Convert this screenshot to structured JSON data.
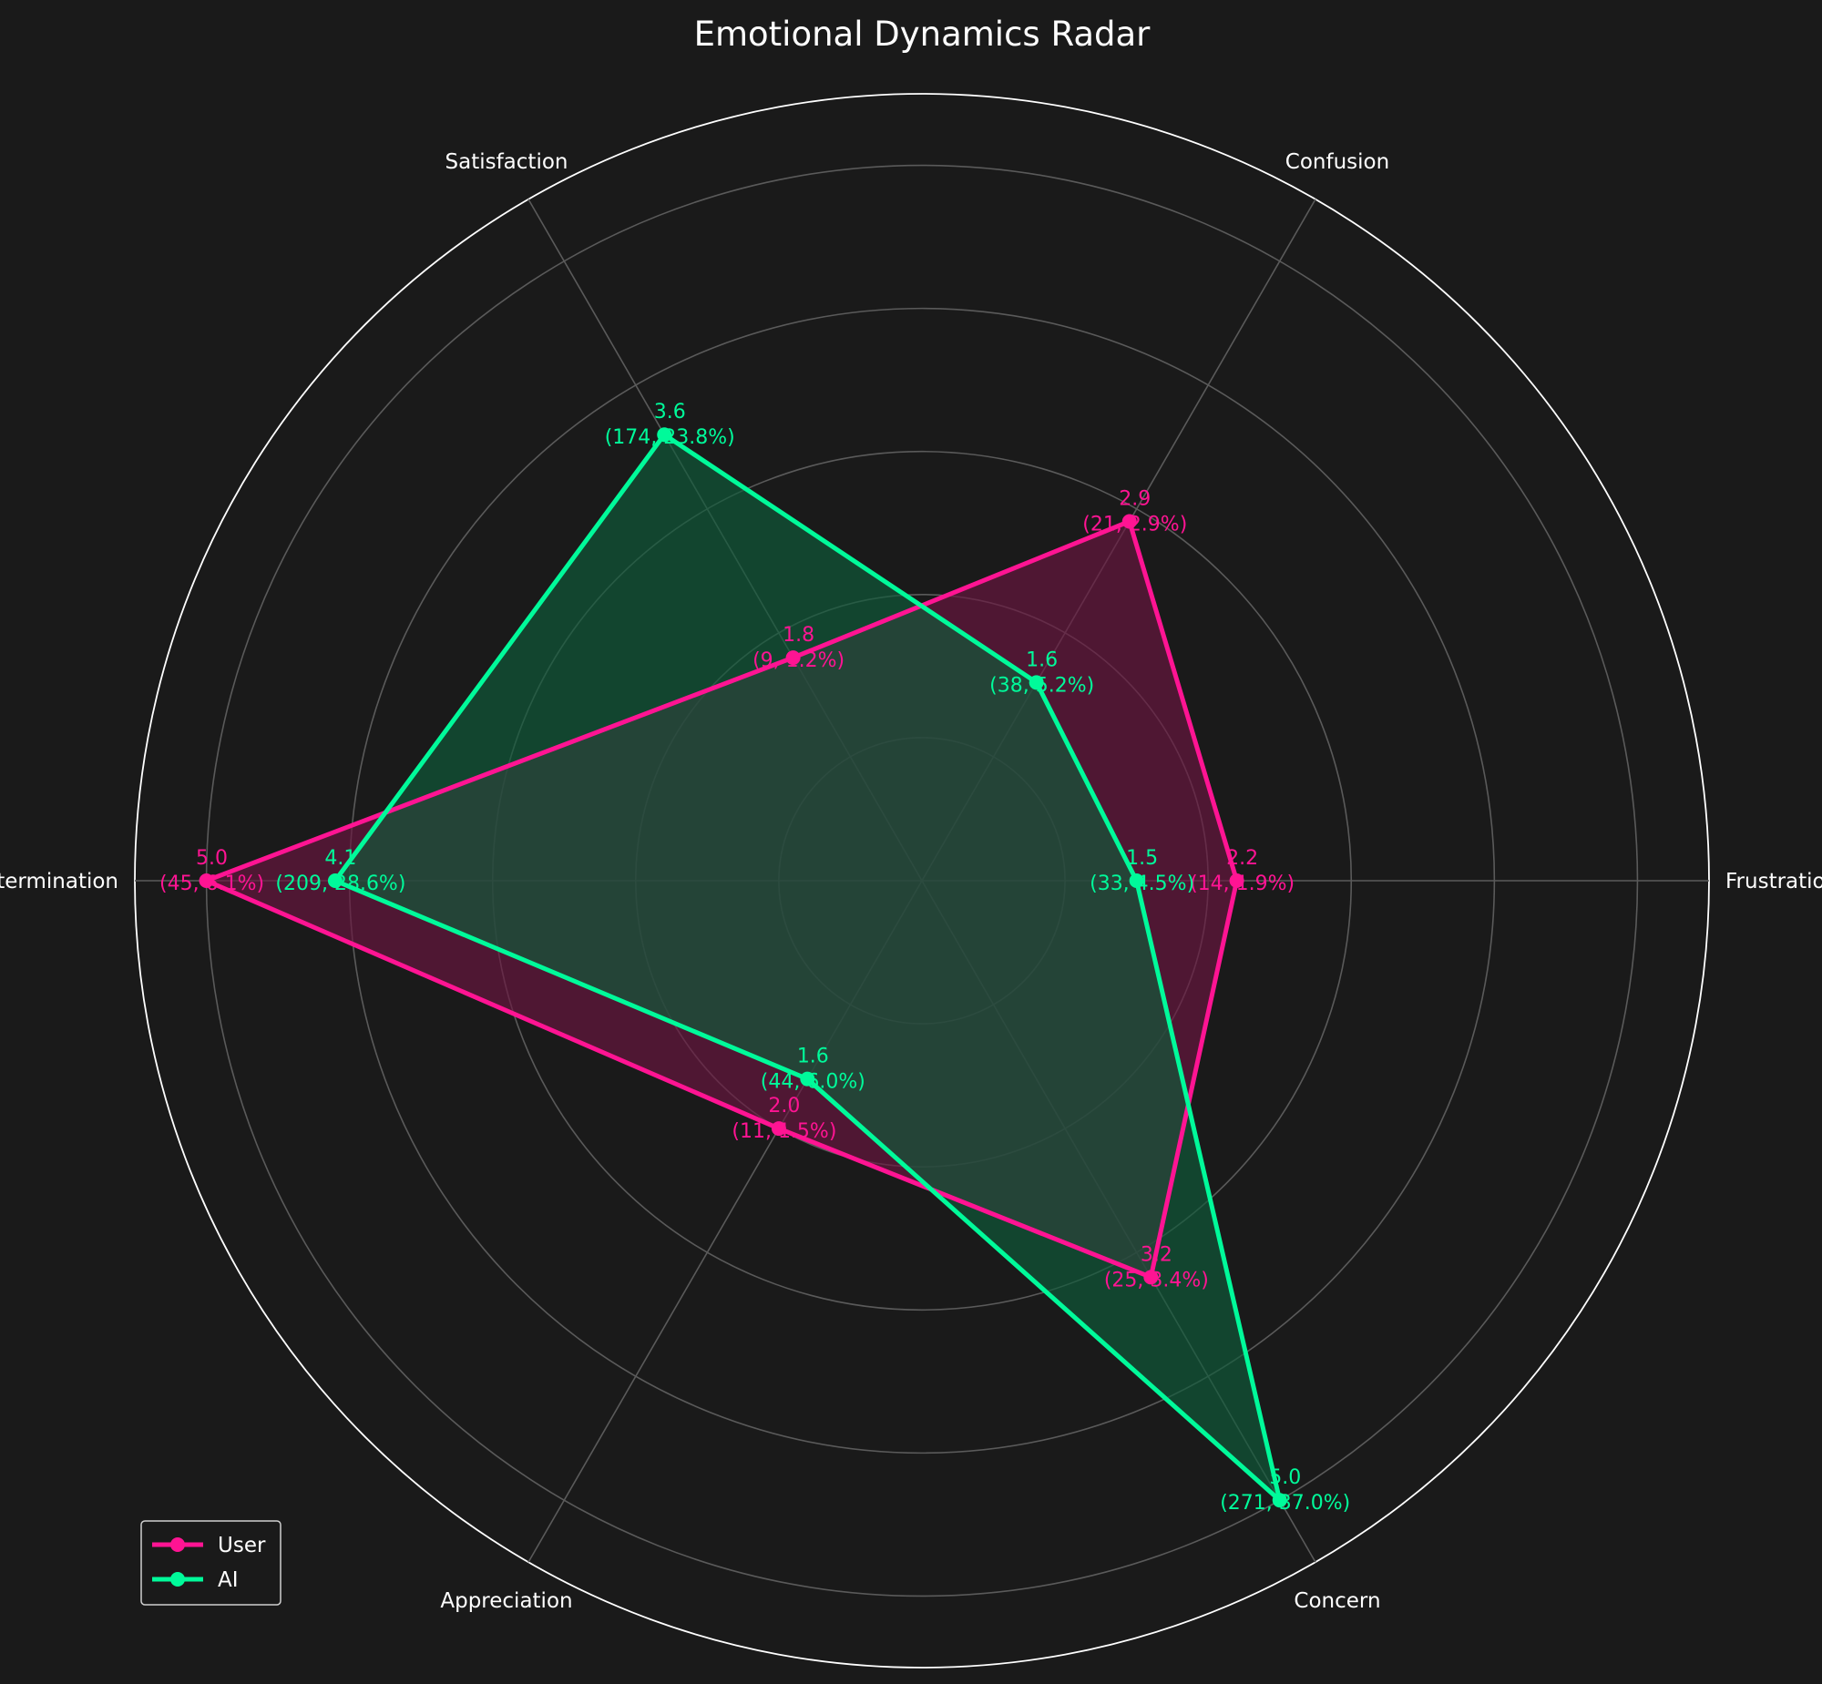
{
  "chart_data": {
    "type": "radar",
    "title": "Emotional Dynamics Radar",
    "categories": [
      "Frustration",
      "Confusion",
      "Satisfaction",
      "Determination",
      "Appreciation",
      "Concern"
    ],
    "rlim": [
      0,
      5.5
    ],
    "grid": true,
    "legend": "lower-left",
    "series": [
      {
        "name": "User",
        "color": "#ff1493",
        "fill": "#6b1540",
        "values": [
          2.2,
          2.9,
          1.8,
          5.0,
          2.0,
          3.2
        ],
        "labels": [
          "(14, 1.9%)",
          "(21, 2.9%)",
          "(9, 1.2%)",
          "(45, 6.1%)",
          "(11, 1.5%)",
          "(25, 3.4%)"
        ]
      },
      {
        "name": "AI",
        "color": "#00fa9a",
        "fill": "#0e5c3a",
        "values": [
          1.5,
          1.6,
          3.6,
          4.1,
          1.6,
          5.0
        ],
        "labels": [
          "(33, 4.5%)",
          "(38, 5.2%)",
          "(174, 23.8%)",
          "(209, 28.6%)",
          "(44, 6.0%)",
          "(271, 37.0%)"
        ]
      }
    ]
  }
}
